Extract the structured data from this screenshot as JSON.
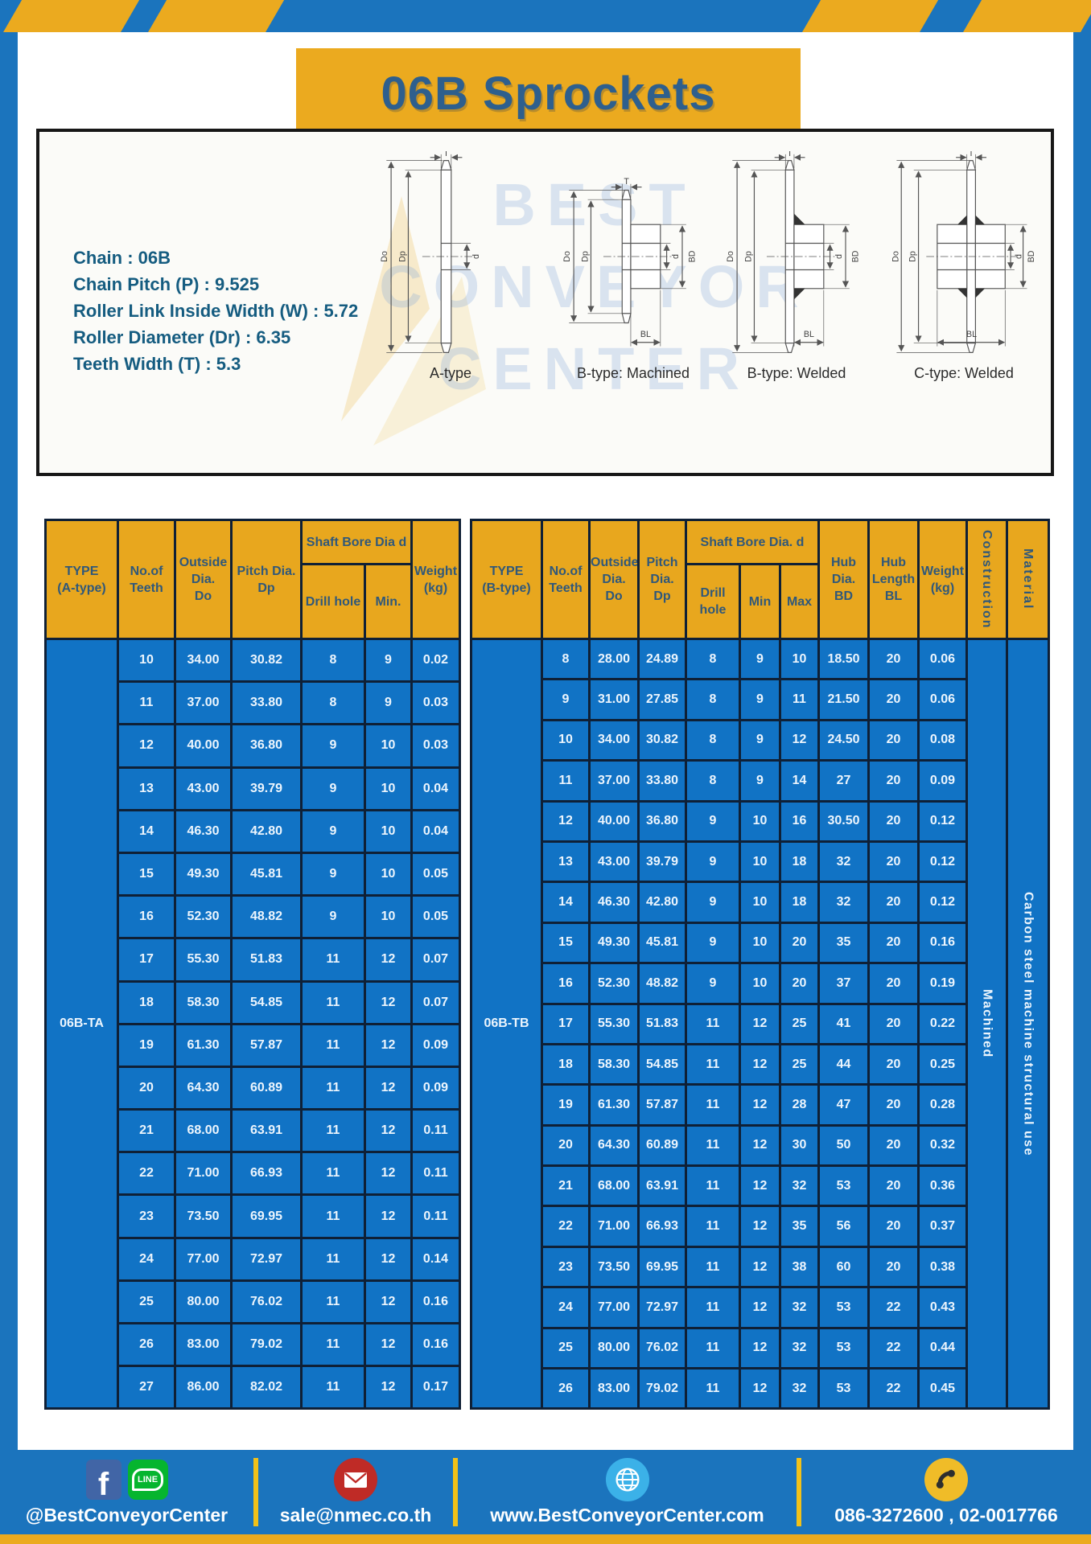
{
  "colors": {
    "frame_blue": "#1B74BD",
    "table_cell_blue": "#1173C5",
    "gold": "#E8A71E",
    "title_gold": "#EBAA1F",
    "grid_navy": "#0F2036",
    "title_text": "#2E5F8D",
    "spec_text": "#155C80"
  },
  "banner": {
    "title": "06B Sprockets"
  },
  "specs": {
    "lines": [
      "Chain  : 06B",
      "Chain Pitch (P)  :  9.525",
      "Roller Link Inside Width (W)  :  5.72",
      "Roller Diameter (Dr)  : 6.35",
      "Teeth Width (T)  :  5.3"
    ]
  },
  "diagrams": {
    "dims": {
      "t": "T",
      "do": "Do",
      "dp": "Dp",
      "d": "d",
      "bd": "BD",
      "bl": "BL"
    },
    "labels": [
      "A-type",
      "B-type: Machined",
      "B-type: Welded",
      "C-type: Welded"
    ],
    "watermark": "BEST\nCONVEYOR\nCENTER"
  },
  "table_a": {
    "headers": {
      "type": "TYPE\n(A-type)",
      "teeth": "No.of\nTeeth",
      "outside": "Outside\nDia.\nDo",
      "pitch": "Pitch Dia.\nDp",
      "shaft": "Shaft Bore Dia d",
      "drill": "Drill hole",
      "min": "Min.",
      "weight": "Weight\n(kg)"
    },
    "type_label": "06B-TA",
    "rows": [
      [
        10,
        "34.00",
        "30.82",
        8,
        9,
        "0.02"
      ],
      [
        11,
        "37.00",
        "33.80",
        8,
        9,
        "0.03"
      ],
      [
        12,
        "40.00",
        "36.80",
        9,
        10,
        "0.03"
      ],
      [
        13,
        "43.00",
        "39.79",
        9,
        10,
        "0.04"
      ],
      [
        14,
        "46.30",
        "42.80",
        9,
        10,
        "0.04"
      ],
      [
        15,
        "49.30",
        "45.81",
        9,
        10,
        "0.05"
      ],
      [
        16,
        "52.30",
        "48.82",
        9,
        10,
        "0.05"
      ],
      [
        17,
        "55.30",
        "51.83",
        11,
        12,
        "0.07"
      ],
      [
        18,
        "58.30",
        "54.85",
        11,
        12,
        "0.07"
      ],
      [
        19,
        "61.30",
        "57.87",
        11,
        12,
        "0.09"
      ],
      [
        20,
        "64.30",
        "60.89",
        11,
        12,
        "0.09"
      ],
      [
        21,
        "68.00",
        "63.91",
        11,
        12,
        "0.11"
      ],
      [
        22,
        "71.00",
        "66.93",
        11,
        12,
        "0.11"
      ],
      [
        23,
        "73.50",
        "69.95",
        11,
        12,
        "0.11"
      ],
      [
        24,
        "77.00",
        "72.97",
        11,
        12,
        "0.14"
      ],
      [
        25,
        "80.00",
        "76.02",
        11,
        12,
        "0.16"
      ],
      [
        26,
        "83.00",
        "79.02",
        11,
        12,
        "0.16"
      ],
      [
        27,
        "86.00",
        "82.02",
        11,
        12,
        "0.17"
      ]
    ]
  },
  "table_b": {
    "headers": {
      "type": "TYPE\n(B-type)",
      "teeth": "No.of\nTeeth",
      "outside": "Outside\nDia.\nDo",
      "pitch": "Pitch\nDia.\nDp",
      "shaft": "Shaft Bore Dia.  d",
      "drill": "Drill hole",
      "min": "Min",
      "max": "Max",
      "hub_dia": "Hub\nDia.\nBD",
      "hub_len": "Hub\nLength\nBL",
      "weight": "Weight\n(kg)",
      "construction": "Construction",
      "material": "Material"
    },
    "type_label": "06B-TB",
    "construction_value": "Machined",
    "material_value": "Carbon  steel  machine  structural  use",
    "rows": [
      [
        8,
        "28.00",
        "24.89",
        8,
        9,
        10,
        "18.50",
        20,
        "0.06"
      ],
      [
        9,
        "31.00",
        "27.85",
        8,
        9,
        11,
        "21.50",
        20,
        "0.06"
      ],
      [
        10,
        "34.00",
        "30.82",
        8,
        9,
        12,
        "24.50",
        20,
        "0.08"
      ],
      [
        11,
        "37.00",
        "33.80",
        8,
        9,
        14,
        "27",
        20,
        "0.09"
      ],
      [
        12,
        "40.00",
        "36.80",
        9,
        10,
        16,
        "30.50",
        20,
        "0.12"
      ],
      [
        13,
        "43.00",
        "39.79",
        9,
        10,
        18,
        "32",
        20,
        "0.12"
      ],
      [
        14,
        "46.30",
        "42.80",
        9,
        10,
        18,
        "32",
        20,
        "0.12"
      ],
      [
        15,
        "49.30",
        "45.81",
        9,
        10,
        20,
        "35",
        20,
        "0.16"
      ],
      [
        16,
        "52.30",
        "48.82",
        9,
        10,
        20,
        "37",
        20,
        "0.19"
      ],
      [
        17,
        "55.30",
        "51.83",
        11,
        12,
        25,
        "41",
        20,
        "0.22"
      ],
      [
        18,
        "58.30",
        "54.85",
        11,
        12,
        25,
        "44",
        20,
        "0.25"
      ],
      [
        19,
        "61.30",
        "57.87",
        11,
        12,
        28,
        "47",
        20,
        "0.28"
      ],
      [
        20,
        "64.30",
        "60.89",
        11,
        12,
        30,
        "50",
        20,
        "0.32"
      ],
      [
        21,
        "68.00",
        "63.91",
        11,
        12,
        32,
        "53",
        20,
        "0.36"
      ],
      [
        22,
        "71.00",
        "66.93",
        11,
        12,
        35,
        "56",
        20,
        "0.37"
      ],
      [
        23,
        "73.50",
        "69.95",
        11,
        12,
        38,
        "60",
        20,
        "0.38"
      ],
      [
        24,
        "77.00",
        "72.97",
        11,
        12,
        32,
        "53",
        22,
        "0.43"
      ],
      [
        25,
        "80.00",
        "76.02",
        11,
        12,
        32,
        "53",
        22,
        "0.44"
      ],
      [
        26,
        "83.00",
        "79.02",
        11,
        12,
        32,
        "53",
        22,
        "0.45"
      ]
    ]
  },
  "footer": {
    "facebook_label": "f",
    "line_label": "LINE",
    "social_text": "@BestConveyorCenter",
    "email": "sale@nmec.co.th",
    "website": "www.BestConveyorCenter.com",
    "phone": "086-3272600 , 02-0017766"
  }
}
